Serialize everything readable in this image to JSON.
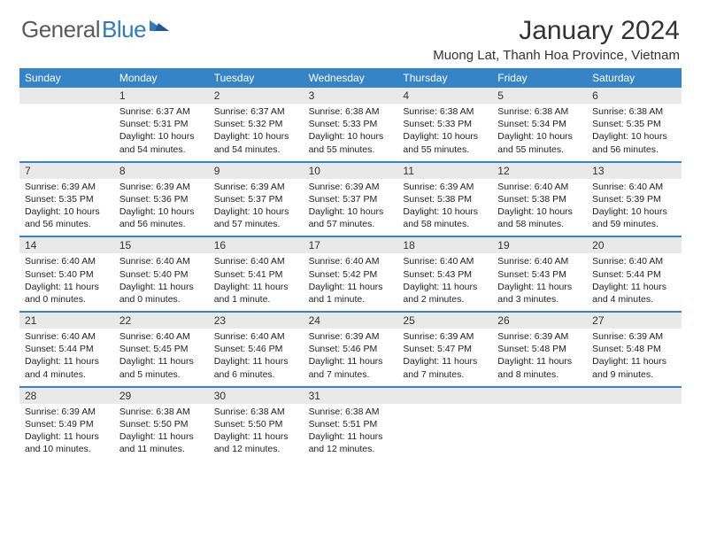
{
  "logo": {
    "text_gray": "General",
    "text_blue": "Blue"
  },
  "header": {
    "month_title": "January 2024",
    "location": "Muong Lat, Thanh Hoa Province, Vietnam"
  },
  "colors": {
    "header_bg": "#3584c7",
    "header_text": "#ffffff",
    "daynum_bg": "#e9e9e9",
    "text": "#333333",
    "logo_gray": "#5a5a5a",
    "logo_blue": "#2f7bbf"
  },
  "weekdays": [
    "Sunday",
    "Monday",
    "Tuesday",
    "Wednesday",
    "Thursday",
    "Friday",
    "Saturday"
  ],
  "weeks": [
    [
      {
        "empty": true
      },
      {
        "num": "1",
        "sunrise": "Sunrise: 6:37 AM",
        "sunset": "Sunset: 5:31 PM",
        "daylight1": "Daylight: 10 hours",
        "daylight2": "and 54 minutes."
      },
      {
        "num": "2",
        "sunrise": "Sunrise: 6:37 AM",
        "sunset": "Sunset: 5:32 PM",
        "daylight1": "Daylight: 10 hours",
        "daylight2": "and 54 minutes."
      },
      {
        "num": "3",
        "sunrise": "Sunrise: 6:38 AM",
        "sunset": "Sunset: 5:33 PM",
        "daylight1": "Daylight: 10 hours",
        "daylight2": "and 55 minutes."
      },
      {
        "num": "4",
        "sunrise": "Sunrise: 6:38 AM",
        "sunset": "Sunset: 5:33 PM",
        "daylight1": "Daylight: 10 hours",
        "daylight2": "and 55 minutes."
      },
      {
        "num": "5",
        "sunrise": "Sunrise: 6:38 AM",
        "sunset": "Sunset: 5:34 PM",
        "daylight1": "Daylight: 10 hours",
        "daylight2": "and 55 minutes."
      },
      {
        "num": "6",
        "sunrise": "Sunrise: 6:38 AM",
        "sunset": "Sunset: 5:35 PM",
        "daylight1": "Daylight: 10 hours",
        "daylight2": "and 56 minutes."
      }
    ],
    [
      {
        "num": "7",
        "sunrise": "Sunrise: 6:39 AM",
        "sunset": "Sunset: 5:35 PM",
        "daylight1": "Daylight: 10 hours",
        "daylight2": "and 56 minutes."
      },
      {
        "num": "8",
        "sunrise": "Sunrise: 6:39 AM",
        "sunset": "Sunset: 5:36 PM",
        "daylight1": "Daylight: 10 hours",
        "daylight2": "and 56 minutes."
      },
      {
        "num": "9",
        "sunrise": "Sunrise: 6:39 AM",
        "sunset": "Sunset: 5:37 PM",
        "daylight1": "Daylight: 10 hours",
        "daylight2": "and 57 minutes."
      },
      {
        "num": "10",
        "sunrise": "Sunrise: 6:39 AM",
        "sunset": "Sunset: 5:37 PM",
        "daylight1": "Daylight: 10 hours",
        "daylight2": "and 57 minutes."
      },
      {
        "num": "11",
        "sunrise": "Sunrise: 6:39 AM",
        "sunset": "Sunset: 5:38 PM",
        "daylight1": "Daylight: 10 hours",
        "daylight2": "and 58 minutes."
      },
      {
        "num": "12",
        "sunrise": "Sunrise: 6:40 AM",
        "sunset": "Sunset: 5:38 PM",
        "daylight1": "Daylight: 10 hours",
        "daylight2": "and 58 minutes."
      },
      {
        "num": "13",
        "sunrise": "Sunrise: 6:40 AM",
        "sunset": "Sunset: 5:39 PM",
        "daylight1": "Daylight: 10 hours",
        "daylight2": "and 59 minutes."
      }
    ],
    [
      {
        "num": "14",
        "sunrise": "Sunrise: 6:40 AM",
        "sunset": "Sunset: 5:40 PM",
        "daylight1": "Daylight: 11 hours",
        "daylight2": "and 0 minutes."
      },
      {
        "num": "15",
        "sunrise": "Sunrise: 6:40 AM",
        "sunset": "Sunset: 5:40 PM",
        "daylight1": "Daylight: 11 hours",
        "daylight2": "and 0 minutes."
      },
      {
        "num": "16",
        "sunrise": "Sunrise: 6:40 AM",
        "sunset": "Sunset: 5:41 PM",
        "daylight1": "Daylight: 11 hours",
        "daylight2": "and 1 minute."
      },
      {
        "num": "17",
        "sunrise": "Sunrise: 6:40 AM",
        "sunset": "Sunset: 5:42 PM",
        "daylight1": "Daylight: 11 hours",
        "daylight2": "and 1 minute."
      },
      {
        "num": "18",
        "sunrise": "Sunrise: 6:40 AM",
        "sunset": "Sunset: 5:43 PM",
        "daylight1": "Daylight: 11 hours",
        "daylight2": "and 2 minutes."
      },
      {
        "num": "19",
        "sunrise": "Sunrise: 6:40 AM",
        "sunset": "Sunset: 5:43 PM",
        "daylight1": "Daylight: 11 hours",
        "daylight2": "and 3 minutes."
      },
      {
        "num": "20",
        "sunrise": "Sunrise: 6:40 AM",
        "sunset": "Sunset: 5:44 PM",
        "daylight1": "Daylight: 11 hours",
        "daylight2": "and 4 minutes."
      }
    ],
    [
      {
        "num": "21",
        "sunrise": "Sunrise: 6:40 AM",
        "sunset": "Sunset: 5:44 PM",
        "daylight1": "Daylight: 11 hours",
        "daylight2": "and 4 minutes."
      },
      {
        "num": "22",
        "sunrise": "Sunrise: 6:40 AM",
        "sunset": "Sunset: 5:45 PM",
        "daylight1": "Daylight: 11 hours",
        "daylight2": "and 5 minutes."
      },
      {
        "num": "23",
        "sunrise": "Sunrise: 6:40 AM",
        "sunset": "Sunset: 5:46 PM",
        "daylight1": "Daylight: 11 hours",
        "daylight2": "and 6 minutes."
      },
      {
        "num": "24",
        "sunrise": "Sunrise: 6:39 AM",
        "sunset": "Sunset: 5:46 PM",
        "daylight1": "Daylight: 11 hours",
        "daylight2": "and 7 minutes."
      },
      {
        "num": "25",
        "sunrise": "Sunrise: 6:39 AM",
        "sunset": "Sunset: 5:47 PM",
        "daylight1": "Daylight: 11 hours",
        "daylight2": "and 7 minutes."
      },
      {
        "num": "26",
        "sunrise": "Sunrise: 6:39 AM",
        "sunset": "Sunset: 5:48 PM",
        "daylight1": "Daylight: 11 hours",
        "daylight2": "and 8 minutes."
      },
      {
        "num": "27",
        "sunrise": "Sunrise: 6:39 AM",
        "sunset": "Sunset: 5:48 PM",
        "daylight1": "Daylight: 11 hours",
        "daylight2": "and 9 minutes."
      }
    ],
    [
      {
        "num": "28",
        "sunrise": "Sunrise: 6:39 AM",
        "sunset": "Sunset: 5:49 PM",
        "daylight1": "Daylight: 11 hours",
        "daylight2": "and 10 minutes."
      },
      {
        "num": "29",
        "sunrise": "Sunrise: 6:38 AM",
        "sunset": "Sunset: 5:50 PM",
        "daylight1": "Daylight: 11 hours",
        "daylight2": "and 11 minutes."
      },
      {
        "num": "30",
        "sunrise": "Sunrise: 6:38 AM",
        "sunset": "Sunset: 5:50 PM",
        "daylight1": "Daylight: 11 hours",
        "daylight2": "and 12 minutes."
      },
      {
        "num": "31",
        "sunrise": "Sunrise: 6:38 AM",
        "sunset": "Sunset: 5:51 PM",
        "daylight1": "Daylight: 11 hours",
        "daylight2": "and 12 minutes."
      },
      {
        "empty": true
      },
      {
        "empty": true
      },
      {
        "empty": true
      }
    ]
  ]
}
